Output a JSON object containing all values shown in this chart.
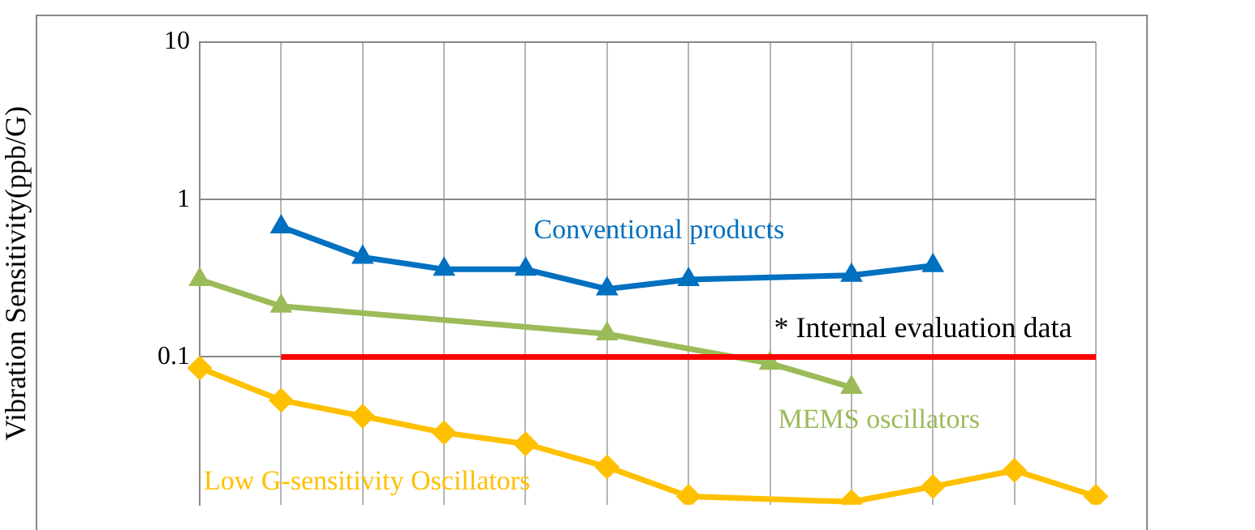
{
  "chart_data": {
    "type": "line",
    "ylabel": "Vibration Sensitivity(ppb/G)",
    "log": true,
    "grid": true,
    "tick_labels": "y",
    "categories": [
      null,
      null,
      null,
      null,
      null,
      null,
      null,
      null,
      null,
      null,
      null,
      null
    ],
    "ylim": [
      0.0115,
      10
    ],
    "yticks": [
      0.1,
      1,
      10
    ],
    "series": [
      {
        "name": "Conventional products",
        "color": "#0070c0",
        "marker": "triangle",
        "values": [
          null,
          0.67,
          0.43,
          0.36,
          0.36,
          0.27,
          0.31,
          null,
          0.33,
          0.38,
          null,
          null
        ]
      },
      {
        "name": "MEMS oscillators",
        "color": "#9bbb59",
        "marker": "triangle",
        "values": [
          0.31,
          0.21,
          null,
          null,
          null,
          0.14,
          null,
          0.091,
          0.064,
          null,
          null,
          null
        ]
      },
      {
        "name": "Low G-sensitivity Oscillators",
        "color": "#ffc000",
        "marker": "diamond",
        "values": [
          0.085,
          0.053,
          0.042,
          0.033,
          0.028,
          0.02,
          0.013,
          null,
          0.012,
          0.015,
          0.019,
          0.013
        ]
      },
      {
        "color": "#ff0000",
        "marker": "none",
        "values": [
          null,
          0.1,
          0.1,
          0.1,
          0.1,
          0.1,
          0.1,
          0.1,
          0.1,
          0.1,
          0.1,
          0.1
        ]
      }
    ],
    "annotations": [
      "* Internal evaluation data"
    ]
  }
}
